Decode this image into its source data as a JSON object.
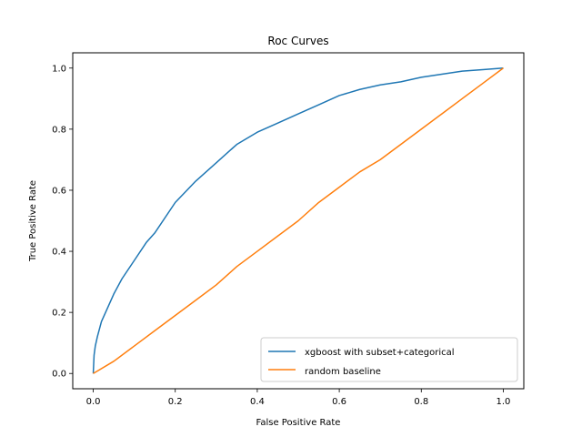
{
  "chart_data": {
    "type": "line",
    "title": "Roc Curves",
    "xlabel": "False Positive Rate",
    "ylabel": "True Positive Rate",
    "xlim": [
      -0.05,
      1.05
    ],
    "ylim": [
      -0.05,
      1.05
    ],
    "xticks": [
      "0.0",
      "0.2",
      "0.4",
      "0.6",
      "0.8",
      "1.0"
    ],
    "yticks": [
      "0.0",
      "0.2",
      "0.4",
      "0.6",
      "0.8",
      "1.0"
    ],
    "grid": false,
    "legend_position": "lower-right",
    "series": [
      {
        "name": "xgboost with subset+categorical",
        "color": "#1f77b4",
        "x": [
          0.0,
          0.002,
          0.005,
          0.01,
          0.02,
          0.03,
          0.05,
          0.07,
          0.1,
          0.13,
          0.15,
          0.2,
          0.25,
          0.3,
          0.35,
          0.4,
          0.45,
          0.5,
          0.55,
          0.6,
          0.65,
          0.7,
          0.75,
          0.8,
          0.85,
          0.9,
          0.95,
          1.0
        ],
        "y": [
          0.0,
          0.06,
          0.09,
          0.12,
          0.17,
          0.2,
          0.26,
          0.31,
          0.37,
          0.43,
          0.46,
          0.56,
          0.63,
          0.69,
          0.75,
          0.79,
          0.82,
          0.85,
          0.88,
          0.91,
          0.93,
          0.945,
          0.955,
          0.97,
          0.98,
          0.99,
          0.995,
          1.0
        ]
      },
      {
        "name": "random baseline",
        "color": "#ff7f0e",
        "x": [
          0.0,
          0.05,
          0.1,
          0.15,
          0.2,
          0.25,
          0.3,
          0.35,
          0.4,
          0.45,
          0.5,
          0.55,
          0.6,
          0.65,
          0.7,
          0.75,
          0.8,
          0.85,
          0.9,
          0.95,
          1.0
        ],
        "y": [
          0.0,
          0.04,
          0.09,
          0.14,
          0.19,
          0.24,
          0.29,
          0.35,
          0.4,
          0.45,
          0.5,
          0.56,
          0.61,
          0.66,
          0.7,
          0.75,
          0.8,
          0.85,
          0.9,
          0.95,
          1.0
        ]
      }
    ]
  }
}
